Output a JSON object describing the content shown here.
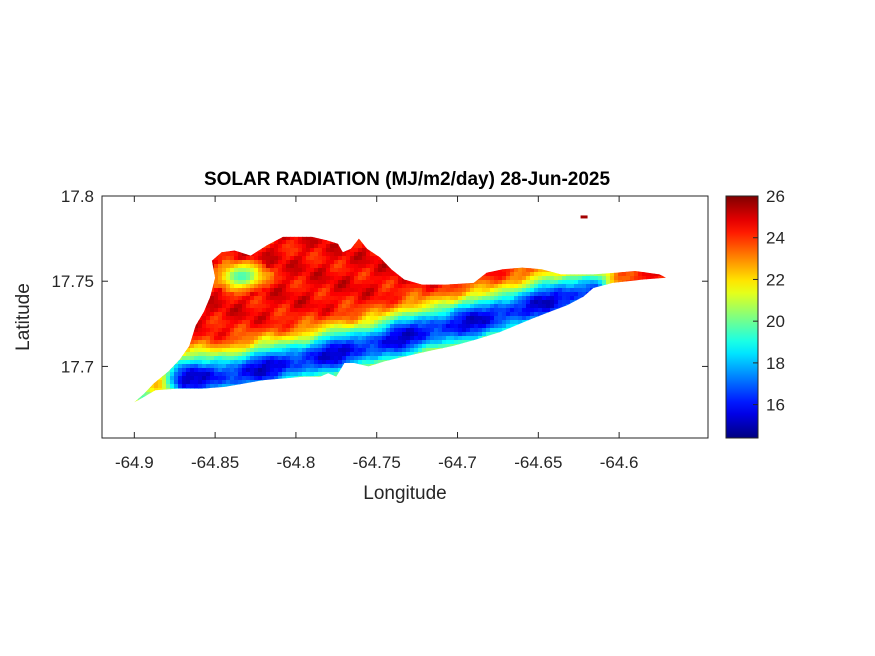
{
  "chart_data": {
    "type": "heatmap",
    "title": "SOLAR RADIATION (MJ/m2/day) 28-Jun-2025",
    "xlabel": "Longitude",
    "ylabel": "Latitude",
    "xlim": [
      -64.92,
      -64.545
    ],
    "ylim": [
      17.658,
      17.8
    ],
    "x_ticks": [
      -64.9,
      -64.85,
      -64.8,
      -64.75,
      -64.7,
      -64.65,
      -64.6
    ],
    "x_tick_labels": [
      "-64.9",
      "-64.85",
      "-64.8",
      "-64.75",
      "-64.7",
      "-64.65",
      "-64.6"
    ],
    "y_ticks": [
      17.7,
      17.75,
      17.8
    ],
    "y_tick_labels": [
      "17.7",
      "17.75",
      "17.8"
    ],
    "grid": false,
    "colorbar": {
      "colormap": "jet",
      "clim": [
        14.4,
        26
      ],
      "ticks": [
        16,
        18,
        20,
        22,
        24,
        26
      ],
      "tick_labels": [
        "16",
        "18",
        "20",
        "22",
        "24",
        "26"
      ]
    },
    "island_outline": [
      [
        -64.9,
        17.679
      ],
      [
        -64.894,
        17.684
      ],
      [
        -64.888,
        17.69
      ],
      [
        -64.879,
        17.697
      ],
      [
        -64.872,
        17.704
      ],
      [
        -64.866,
        17.712
      ],
      [
        -64.862,
        17.724
      ],
      [
        -64.857,
        17.732
      ],
      [
        -64.853,
        17.741
      ],
      [
        -64.85,
        17.752
      ],
      [
        -64.852,
        17.762
      ],
      [
        -64.846,
        17.767
      ],
      [
        -64.838,
        17.768
      ],
      [
        -64.828,
        17.765
      ],
      [
        -64.818,
        17.771
      ],
      [
        -64.808,
        17.776
      ],
      [
        -64.798,
        17.776
      ],
      [
        -64.79,
        17.776
      ],
      [
        -64.781,
        17.774
      ],
      [
        -64.774,
        17.772
      ],
      [
        -64.771,
        17.767
      ],
      [
        -64.766,
        17.769
      ],
      [
        -64.761,
        17.775
      ],
      [
        -64.756,
        17.769
      ],
      [
        -64.748,
        17.764
      ],
      [
        -64.741,
        17.757
      ],
      [
        -64.733,
        17.751
      ],
      [
        -64.722,
        17.748
      ],
      [
        -64.707,
        17.748
      ],
      [
        -64.69,
        17.749
      ],
      [
        -64.682,
        17.755
      ],
      [
        -64.672,
        17.757
      ],
      [
        -64.66,
        17.758
      ],
      [
        -64.648,
        17.757
      ],
      [
        -64.636,
        17.754
      ],
      [
        -64.628,
        17.754
      ],
      [
        -64.616,
        17.754
      ],
      [
        -64.602,
        17.755
      ],
      [
        -64.59,
        17.756
      ],
      [
        -64.575,
        17.754
      ],
      [
        -64.571,
        17.752
      ],
      [
        -64.585,
        17.751
      ],
      [
        -64.604,
        17.749
      ],
      [
        -64.616,
        17.746
      ],
      [
        -64.622,
        17.741
      ],
      [
        -64.632,
        17.736
      ],
      [
        -64.643,
        17.732
      ],
      [
        -64.654,
        17.728
      ],
      [
        -64.664,
        17.724
      ],
      [
        -64.674,
        17.72
      ],
      [
        -64.688,
        17.716
      ],
      [
        -64.703,
        17.712
      ],
      [
        -64.718,
        17.709
      ],
      [
        -64.732,
        17.706
      ],
      [
        -64.745,
        17.703
      ],
      [
        -64.755,
        17.7
      ],
      [
        -64.764,
        17.702
      ],
      [
        -64.77,
        17.702
      ],
      [
        -64.775,
        17.694
      ],
      [
        -64.78,
        17.696
      ],
      [
        -64.785,
        17.694
      ],
      [
        -64.795,
        17.694
      ],
      [
        -64.807,
        17.693
      ],
      [
        -64.82,
        17.692
      ],
      [
        -64.832,
        17.69
      ],
      [
        -64.844,
        17.688
      ],
      [
        -64.858,
        17.687
      ],
      [
        -64.873,
        17.687
      ],
      [
        -64.887,
        17.686
      ],
      [
        -64.896,
        17.681
      ]
    ],
    "islet_points": [
      [
        -64.622,
        17.788
      ]
    ],
    "low_radiation_band": {
      "value_min": 15.0,
      "value_center_max": 18.5,
      "description_points": [
        [
          -64.87,
          17.694
        ],
        [
          -64.84,
          17.696
        ],
        [
          -64.8,
          17.704
        ],
        [
          -64.76,
          17.712
        ],
        [
          -64.72,
          17.722
        ],
        [
          -64.68,
          17.73
        ],
        [
          -64.65,
          17.738
        ],
        [
          -64.62,
          17.744
        ]
      ]
    },
    "cool_patch": [
      [
        -64.835,
        17.754,
        19.5
      ]
    ],
    "background_value": 24.6,
    "sample_values": [
      [
        -64.875,
        17.765,
        25.4
      ],
      [
        -64.79,
        17.772,
        25.2
      ],
      [
        -64.75,
        17.76,
        25.0
      ],
      [
        -64.66,
        17.754,
        25.1
      ],
      [
        -64.59,
        17.754,
        25.6
      ],
      [
        -64.85,
        17.705,
        17.8
      ],
      [
        -64.83,
        17.697,
        15.6
      ],
      [
        -64.8,
        17.703,
        15.9
      ],
      [
        -64.76,
        17.71,
        16.3
      ],
      [
        -64.74,
        17.718,
        15.8
      ],
      [
        -64.7,
        17.725,
        16.0
      ],
      [
        -64.68,
        17.73,
        16.6
      ],
      [
        -64.64,
        17.739,
        18.4
      ],
      [
        -64.895,
        17.682,
        19.5
      ],
      [
        -64.835,
        17.754,
        19.5
      ]
    ]
  }
}
